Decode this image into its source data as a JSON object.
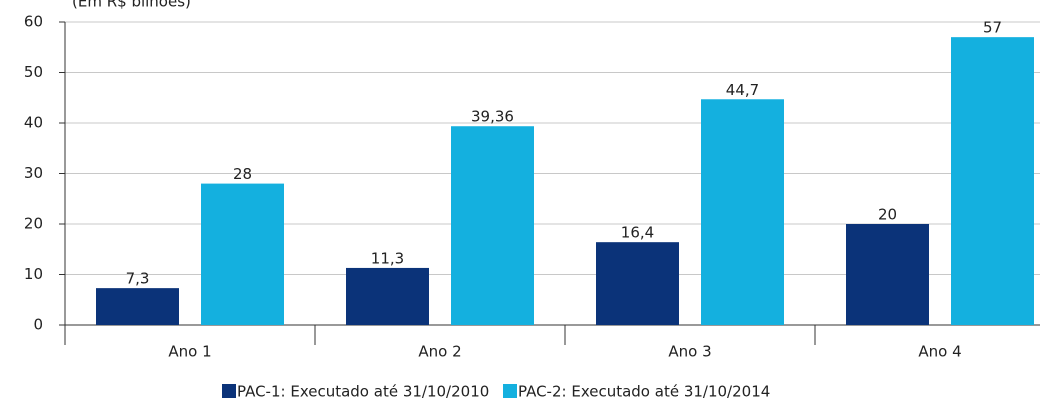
{
  "chart_data": {
    "type": "bar",
    "subtitle": "(Em R$ bilhões)",
    "categories": [
      "Ano 1",
      "Ano 2",
      "Ano 3",
      "Ano 4"
    ],
    "series": [
      {
        "name": "PAC-1: Executado até 31/10/2010",
        "color": "#0b3379",
        "values": [
          7.3,
          11.3,
          16.4,
          20
        ],
        "value_labels": [
          "7,3",
          "11,3",
          "16,4",
          "20"
        ]
      },
      {
        "name": "PAC-2: Executado até 31/10/2014",
        "color": "#14b0df",
        "values": [
          28,
          39.36,
          44.7,
          57
        ],
        "value_labels": [
          "28",
          "39,36",
          "44,7",
          "57"
        ]
      }
    ],
    "ylim": [
      0,
      60
    ],
    "yticks": [
      0,
      10,
      20,
      30,
      40,
      50,
      60
    ],
    "grid": true,
    "legend": "bottom"
  }
}
